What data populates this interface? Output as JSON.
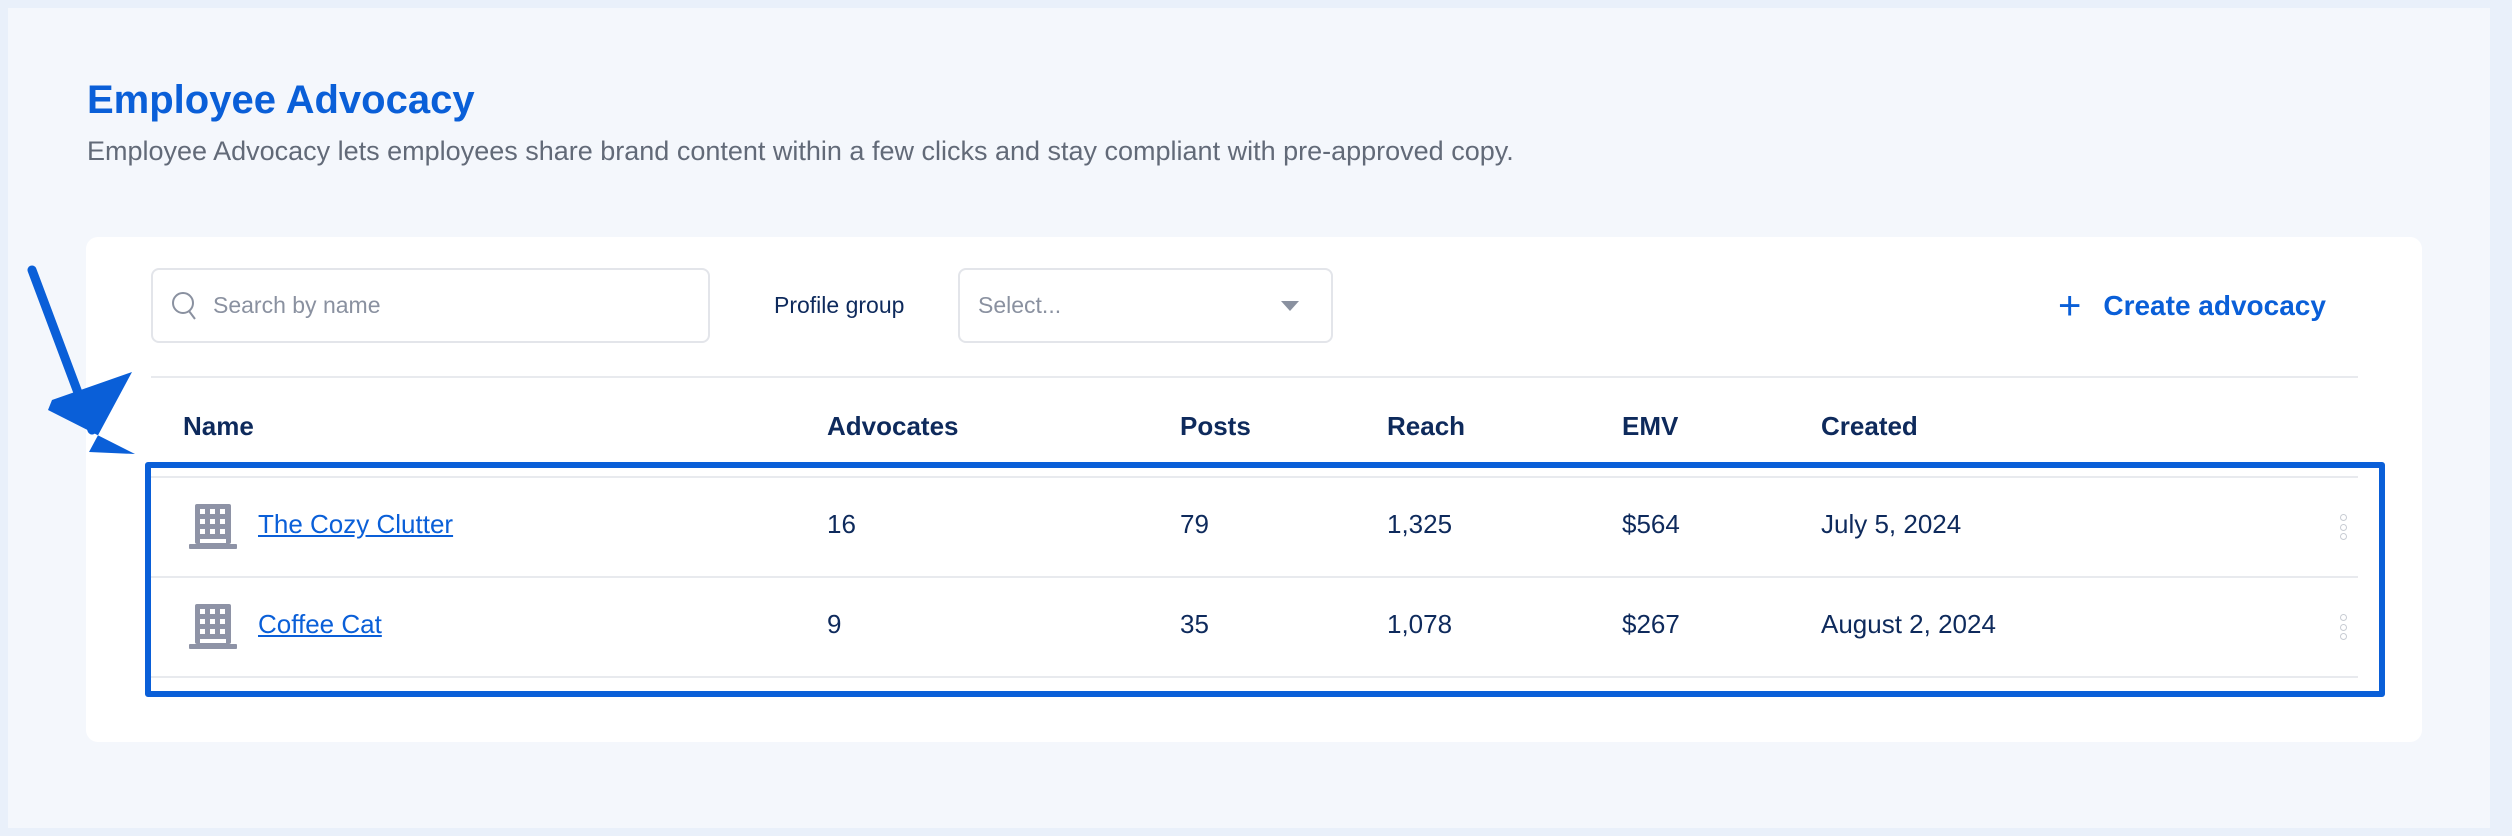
{
  "header": {
    "title": "Employee Advocacy",
    "subtitle": "Employee Advocacy lets employees share brand content within a few clicks and stay compliant with pre-approved copy."
  },
  "toolbar": {
    "search_placeholder": "Search by name",
    "search_value": "",
    "profile_group_label": "Profile group",
    "profile_group_value": "Select...",
    "create_label": "Create advocacy"
  },
  "table": {
    "columns": [
      "Name",
      "Advocates",
      "Posts",
      "Reach",
      "EMV",
      "Created"
    ],
    "rows": [
      {
        "name": "The Cozy Clutter",
        "advocates": "16",
        "posts": "79",
        "reach": "1,325",
        "emv": "$564",
        "created": "July 5, 2024"
      },
      {
        "name": "Coffee Cat",
        "advocates": "9",
        "posts": "35",
        "reach": "1,078",
        "emv": "$267",
        "created": "August 2, 2024"
      }
    ]
  },
  "colors": {
    "accent": "#0a5fd8",
    "text": "#0e2a5c",
    "muted": "#8a91a0",
    "icon": "#8e93a6"
  },
  "icons": {
    "search": "search-icon",
    "dropdown": "chevron-down-icon",
    "create": "plus-icon",
    "row": "building-icon",
    "row_menu": "kebab-icon"
  }
}
